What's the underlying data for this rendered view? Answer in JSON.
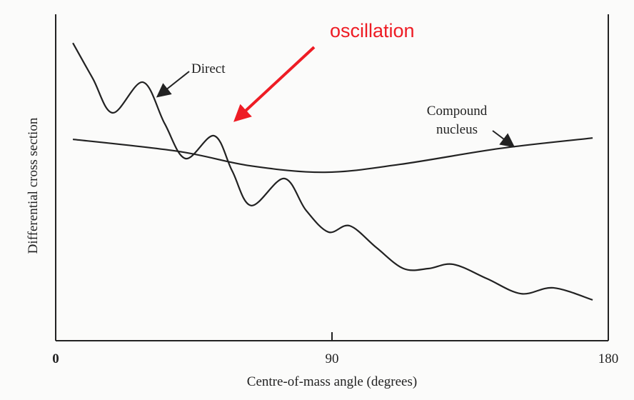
{
  "chart_data": {
    "type": "line",
    "xlabel": "Centre-of-mass angle (degrees)",
    "ylabel": "Differential cross section",
    "xlim": [
      0,
      180
    ],
    "xticks": [
      0,
      90,
      180
    ],
    "ylim": [
      0,
      100
    ],
    "annotation": "oscillation",
    "series": [
      {
        "name": "Direct",
        "color": "#222222",
        "x": [
          5.6,
          12.1,
          18.6,
          28.4,
          35.5,
          42.3,
          51.6,
          57.5,
          63.7,
          74.4,
          81.5,
          88.8,
          95.8,
          104.5,
          113.3,
          121.4,
          129.5,
          140.5,
          151.6,
          162.1,
          174.9
        ],
        "values": [
          91.2,
          80.3,
          69.8,
          79.2,
          66.5,
          55.8,
          62.8,
          52.0,
          41.4,
          49.7,
          40.0,
          33.3,
          35.2,
          28.5,
          22.1,
          22.1,
          23.4,
          19.0,
          14.4,
          16.2,
          12.5
        ]
      },
      {
        "name": "Compound nucleus",
        "color": "#222222",
        "x": [
          5.6,
          40.0,
          63.3,
          87.7,
          112.0,
          144.7,
          174.9
        ],
        "values": [
          61.7,
          58.0,
          53.6,
          51.6,
          54.0,
          58.9,
          62.1
        ]
      }
    ]
  }
}
